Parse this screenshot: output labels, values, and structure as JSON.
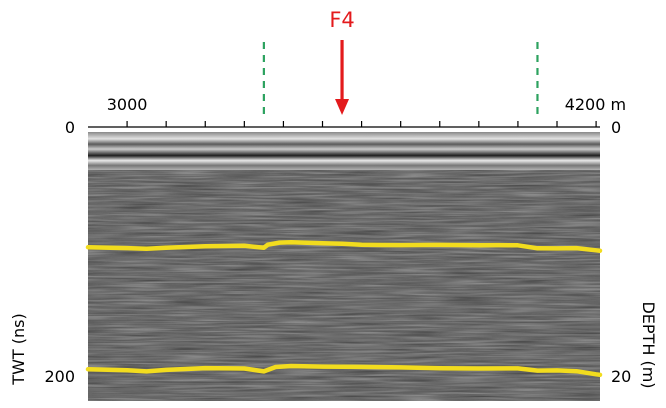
{
  "chart_data": {
    "type": "radargram",
    "marker": {
      "label": "F4",
      "x": 3550,
      "color": "#e31a1c"
    },
    "zone_bounds": {
      "x": [
        3350,
        4050
      ],
      "color": "#2ca25f"
    },
    "x_axis": {
      "range": [
        2900,
        4210
      ],
      "labeled_ticks": [
        {
          "value": 3000,
          "text": "3000"
        },
        {
          "value": 4200,
          "text": "4200 m"
        }
      ],
      "minor_ticks": [
        3100,
        3200,
        3300,
        3400,
        3500,
        3600,
        3700,
        3800,
        3900,
        4000,
        4100
      ]
    },
    "left_axis": {
      "label": "TWT (ns)",
      "range": [
        0,
        220
      ],
      "ticks": [
        {
          "value": 0,
          "text": "0"
        },
        {
          "value": 200,
          "text": "200"
        }
      ]
    },
    "right_axis": {
      "label": "DEPTH (m)",
      "range": [
        0,
        22
      ],
      "ticks": [
        {
          "value": 0,
          "text": "0"
        },
        {
          "value": 20,
          "text": "20"
        }
      ]
    },
    "reflector_color": "#f2dc1e",
    "reflectors": [
      {
        "x": [
          2900,
          3000,
          3050,
          3100,
          3200,
          3300,
          3350,
          3360,
          3390,
          3420,
          3500,
          3550,
          3600,
          3700,
          3800,
          3900,
          3950,
          4000,
          4050,
          4100,
          4150,
          4200,
          4210
        ],
        "twt": [
          96.5,
          97.2,
          97.8,
          97.0,
          95.7,
          95.4,
          96.9,
          94.5,
          92.8,
          92.5,
          93.3,
          93.8,
          94.6,
          94.8,
          94.7,
          95.0,
          94.8,
          95.0,
          97.4,
          97.5,
          97.2,
          99.0,
          99.3
        ]
      },
      {
        "x": [
          2900,
          3000,
          3050,
          3100,
          3200,
          3300,
          3350,
          3380,
          3420,
          3500,
          3600,
          3700,
          3800,
          3900,
          4000,
          4050,
          4100,
          4150,
          4200,
          4210
        ],
        "twt": [
          194.5,
          195.3,
          196.2,
          195.0,
          193.6,
          193.9,
          196.2,
          192.7,
          191.9,
          192.4,
          192.6,
          193.0,
          193.7,
          193.9,
          193.8,
          195.6,
          195.4,
          196.1,
          198.6,
          199.0
        ]
      }
    ]
  }
}
